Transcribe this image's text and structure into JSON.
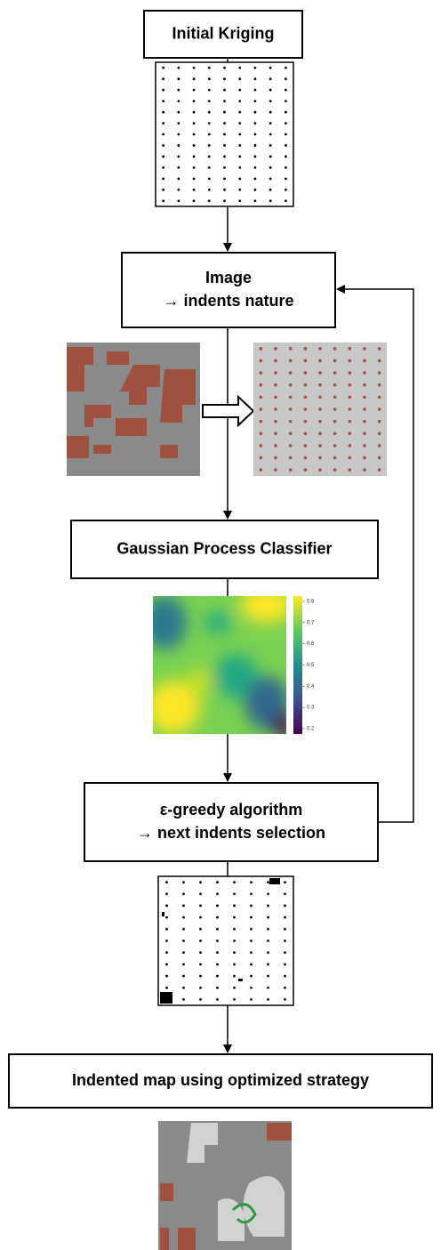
{
  "nodes": [
    {
      "lines": [
        "Initial Kriging"
      ]
    },
    {
      "lines": [
        "Image",
        "→ indents nature"
      ]
    },
    {
      "lines": [
        "Gaussian Process Classifier"
      ]
    },
    {
      "lines": [
        "ε-greedy algorithm",
        "→ next indents selection"
      ]
    },
    {
      "lines": [
        "Indented map using optimized strategy"
      ]
    }
  ],
  "colorbar": {
    "ticks": [
      "0.8",
      "0.7",
      "0.6",
      "0.5",
      "0.4",
      "0.3",
      "0.2"
    ]
  }
}
